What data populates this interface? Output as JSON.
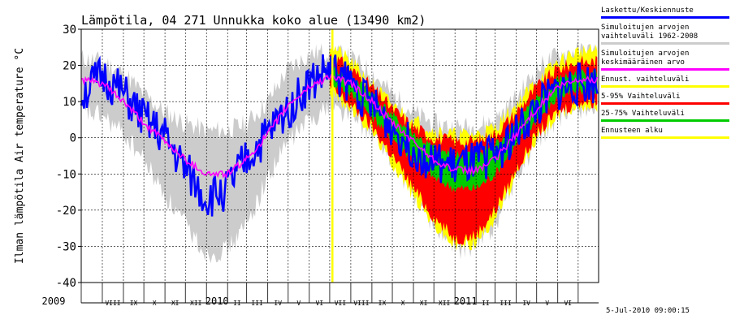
{
  "chart_data": {
    "type": "area",
    "title": "Lämpötila, 04 271 Unnukka koko alue (13490 km2)",
    "ylabel": "Ilman lämpötila Air temperature °C",
    "ylim": [
      -40,
      30
    ],
    "yticks": [
      30,
      20,
      10,
      0,
      -10,
      -20,
      -30,
      -40
    ],
    "grid": true,
    "x_range": [
      "2009-07-01",
      "2011-07-31"
    ],
    "month_labels": [
      "VIII",
      "IX",
      "X",
      "XI",
      "XII",
      "2010",
      "II",
      "III",
      "IV",
      "V",
      "VI",
      "VII",
      "VIII",
      "IX",
      "X",
      "XI",
      "XII",
      "2011",
      "II",
      "III",
      "IV",
      "V",
      "VI"
    ],
    "start_label": "2009",
    "forecast_start": "2010-07-05",
    "timestamp": "5-Jul-2010 09:00:15",
    "legend": [
      {
        "label": "Laskettu/Keskiennuste",
        "color": "#0000ff"
      },
      {
        "label": "Simuloitujen arvojen vaihteluväli 1962-2008",
        "color": "#cccccc"
      },
      {
        "label": "Simuloitujen arvojen keskimääräinen arvo",
        "color": "#ff00ff"
      },
      {
        "label": "Ennust. vaihteluväli",
        "color": "#ffff00"
      },
      {
        "label": "5-95% Vaihteluväli",
        "color": "#ff0000"
      },
      {
        "label": "25-75% Vaihteluväli",
        "color": "#00cc00"
      },
      {
        "label": "Ennusteen alku",
        "color": "#ffff00"
      }
    ],
    "series": [
      {
        "name": "Laskettu/Keskiennuste",
        "x": [
          "2009-07",
          "2009-08",
          "2009-09",
          "2009-10",
          "2009-11",
          "2009-12",
          "2010-01",
          "2010-02",
          "2010-03",
          "2010-04",
          "2010-05",
          "2010-06",
          "2010-07",
          "2010-08",
          "2010-09",
          "2010-10",
          "2010-11",
          "2010-12",
          "2011-01",
          "2011-02",
          "2011-03",
          "2011-04",
          "2011-05",
          "2011-06",
          "2011-07"
        ],
        "values": [
          12,
          17,
          12,
          5,
          0,
          -9,
          -17,
          -14,
          -6,
          1,
          8,
          15,
          19,
          15,
          9,
          3,
          -3,
          -7,
          -8,
          -7,
          -4,
          1,
          8,
          13,
          15
        ]
      },
      {
        "name": "Simuloitujen arvojen keskimääräinen arvo",
        "x": [
          "2009-07",
          "2009-08",
          "2009-09",
          "2009-10",
          "2009-11",
          "2009-12",
          "2010-01",
          "2010-02",
          "2010-03",
          "2010-04",
          "2010-05",
          "2010-06",
          "2010-07",
          "2010-08",
          "2010-09",
          "2010-10",
          "2010-11",
          "2010-12",
          "2011-01",
          "2011-02",
          "2011-03",
          "2011-04",
          "2011-05",
          "2011-06",
          "2011-07"
        ],
        "values": [
          16,
          15,
          10,
          4,
          -1,
          -6,
          -10,
          -10,
          -6,
          1,
          9,
          14,
          17,
          15,
          10,
          4,
          -1,
          -6,
          -9,
          -9,
          -6,
          1,
          8,
          14,
          16
        ]
      },
      {
        "name": "Simuloitujen arvojen vaihteluväli 1962-2008",
        "x": [
          "2009-07",
          "2009-08",
          "2009-09",
          "2009-10",
          "2009-11",
          "2009-12",
          "2010-01",
          "2010-02",
          "2010-03",
          "2010-04",
          "2010-05",
          "2010-06",
          "2010-07",
          "2010-08",
          "2010-09",
          "2010-10",
          "2010-11",
          "2010-12",
          "2011-01",
          "2011-02",
          "2011-03",
          "2011-04",
          "2011-05",
          "2011-06",
          "2011-07"
        ],
        "high": [
          22,
          21,
          18,
          12,
          7,
          4,
          2,
          2,
          4,
          10,
          19,
          23,
          24,
          22,
          18,
          12,
          7,
          4,
          3,
          3,
          5,
          11,
          19,
          23,
          24
        ],
        "low": [
          7,
          6,
          1,
          -6,
          -16,
          -24,
          -32,
          -31,
          -24,
          -11,
          -1,
          5,
          9,
          6,
          1,
          -6,
          -16,
          -24,
          -31,
          -30,
          -24,
          -11,
          -1,
          5,
          8
        ]
      },
      {
        "name": "5-95% Vaihteluväli",
        "x": [
          "2010-07",
          "2010-08",
          "2010-09",
          "2010-10",
          "2010-11",
          "2010-12",
          "2011-01",
          "2011-02",
          "2011-03",
          "2011-04",
          "2011-05",
          "2011-06",
          "2011-07"
        ],
        "high": [
          23,
          19,
          14,
          8,
          3,
          0,
          -1,
          -1,
          1,
          7,
          14,
          19,
          21
        ],
        "low": [
          14,
          9,
          3,
          -5,
          -14,
          -22,
          -28,
          -27,
          -20,
          -9,
          1,
          7,
          10
        ]
      },
      {
        "name": "25-75% Vaihteluväli",
        "x": [
          "2010-07",
          "2010-08",
          "2010-09",
          "2010-10",
          "2010-11",
          "2010-12",
          "2011-01",
          "2011-02",
          "2011-03",
          "2011-04",
          "2011-05",
          "2011-06",
          "2011-07"
        ],
        "high": [
          20,
          17,
          12,
          6,
          1,
          -3,
          -5,
          -4,
          -2,
          4,
          11,
          16,
          18
        ],
        "low": [
          16,
          12,
          6,
          0,
          -6,
          -11,
          -14,
          -14,
          -10,
          -2,
          5,
          11,
          13
        ]
      },
      {
        "name": "Ennust. vaihteluväli",
        "x": [
          "2010-07",
          "2010-08",
          "2010-09",
          "2010-10",
          "2010-11",
          "2010-12",
          "2011-01",
          "2011-02",
          "2011-03",
          "2011-04",
          "2011-05",
          "2011-06",
          "2011-07"
        ],
        "high": [
          26,
          21,
          15,
          9,
          5,
          2,
          1,
          1,
          3,
          9,
          16,
          21,
          24
        ],
        "low": [
          13,
          8,
          2,
          -7,
          -16,
          -24,
          -30,
          -29,
          -22,
          -11,
          0,
          6,
          9
        ]
      }
    ]
  }
}
